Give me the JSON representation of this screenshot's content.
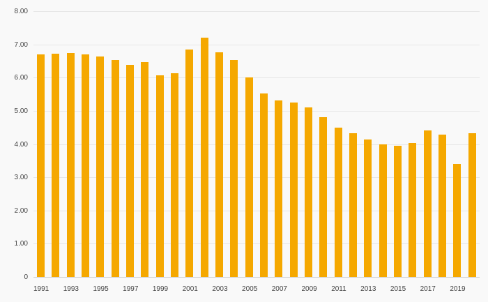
{
  "chart_data": {
    "type": "bar",
    "title": "",
    "xlabel": "",
    "ylabel": "",
    "ylim": [
      0,
      8
    ],
    "grid": true,
    "legend": false,
    "background": "#f9f9f9",
    "bar_color": "#F5A800",
    "gridline_color": "#e7e7e7",
    "axis_text_color": "#444444",
    "categories": [
      "1991",
      "1992",
      "1993",
      "1994",
      "1995",
      "1996",
      "1997",
      "1998",
      "1999",
      "2000",
      "2001",
      "2002",
      "2003",
      "2004",
      "2005",
      "2006",
      "2007",
      "2008",
      "2009",
      "2010",
      "2011",
      "2012",
      "2013",
      "2014",
      "2015",
      "2016",
      "2017",
      "2018",
      "2019",
      "2020"
    ],
    "values": [
      6.72,
      6.75,
      6.77,
      6.72,
      6.65,
      6.55,
      6.4,
      6.48,
      6.1,
      6.15,
      6.87,
      7.22,
      6.78,
      6.55,
      6.02,
      5.55,
      5.33,
      5.27,
      5.12,
      4.83,
      4.52,
      4.35,
      4.15,
      4.02,
      3.97,
      4.05,
      4.43,
      4.3,
      3.43,
      4.35
    ],
    "yticks": [
      {
        "v": 0,
        "label": "0"
      },
      {
        "v": 1,
        "label": "1.00"
      },
      {
        "v": 2,
        "label": "2.00"
      },
      {
        "v": 3,
        "label": "3.00"
      },
      {
        "v": 4,
        "label": "4.00"
      },
      {
        "v": 5,
        "label": "5.00"
      },
      {
        "v": 6,
        "label": "6.00"
      },
      {
        "v": 7,
        "label": "7.00"
      },
      {
        "v": 8,
        "label": "8.00"
      }
    ],
    "xtick_labels_visible": [
      "1991",
      "1993",
      "1995",
      "1997",
      "1999",
      "2001",
      "2003",
      "2005",
      "2007",
      "2009",
      "2011",
      "2013",
      "2015",
      "2017",
      "2019"
    ],
    "xtick_every": 2
  }
}
